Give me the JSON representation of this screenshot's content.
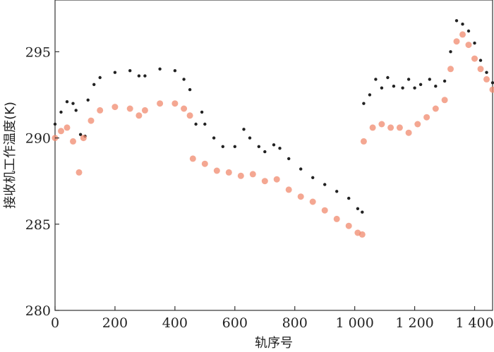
{
  "chart_data": {
    "type": "scatter",
    "xlabel": "轨序号",
    "ylabel": "接收机工作温度(K)",
    "xlim": [
      0,
      1460
    ],
    "ylim": [
      280,
      298
    ],
    "x_ticks": [
      0,
      200,
      400,
      600,
      800,
      1000,
      1200,
      1400
    ],
    "x_tick_labels": [
      "0",
      "200",
      "400",
      "600",
      "800",
      "1 000",
      "1 200",
      "1 400"
    ],
    "y_ticks": [
      280,
      285,
      290,
      295
    ],
    "y_tick_labels": [
      "280",
      "285",
      "290",
      "295"
    ],
    "grid": false,
    "series": [
      {
        "color": "#222222",
        "points": [
          [
            0,
            290.8
          ],
          [
            20,
            291.5
          ],
          [
            40,
            292.1
          ],
          [
            60,
            292.0
          ],
          [
            70,
            291.6
          ],
          [
            85,
            290.2
          ],
          [
            100,
            290.1
          ],
          [
            110,
            292.2
          ],
          [
            130,
            293.1
          ],
          [
            150,
            293.5
          ],
          [
            200,
            293.8
          ],
          [
            250,
            293.9
          ],
          [
            280,
            293.6
          ],
          [
            300,
            293.6
          ],
          [
            350,
            294.0
          ],
          [
            400,
            293.9
          ],
          [
            430,
            293.4
          ],
          [
            450,
            292.8
          ],
          [
            470,
            290.8
          ],
          [
            490,
            291.5
          ],
          [
            500,
            290.8
          ],
          [
            530,
            290.0
          ],
          [
            560,
            289.5
          ],
          [
            600,
            289.5
          ],
          [
            630,
            290.5
          ],
          [
            650,
            290.0
          ],
          [
            680,
            289.5
          ],
          [
            700,
            289.2
          ],
          [
            730,
            289.6
          ],
          [
            750,
            289.4
          ],
          [
            780,
            288.8
          ],
          [
            820,
            288.2
          ],
          [
            860,
            287.7
          ],
          [
            900,
            287.3
          ],
          [
            940,
            286.9
          ],
          [
            980,
            286.5
          ],
          [
            1010,
            285.9
          ],
          [
            1025,
            285.7
          ],
          [
            1030,
            292.0
          ],
          [
            1050,
            292.5
          ],
          [
            1070,
            293.4
          ],
          [
            1090,
            292.9
          ],
          [
            1110,
            293.5
          ],
          [
            1130,
            293.0
          ],
          [
            1160,
            292.9
          ],
          [
            1180,
            293.4
          ],
          [
            1200,
            292.9
          ],
          [
            1220,
            293.1
          ],
          [
            1250,
            293.4
          ],
          [
            1270,
            293.0
          ],
          [
            1300,
            293.3
          ],
          [
            1320,
            295.0
          ],
          [
            1340,
            296.8
          ],
          [
            1360,
            296.6
          ],
          [
            1380,
            296.2
          ],
          [
            1400,
            295.5
          ],
          [
            1420,
            294.5
          ],
          [
            1440,
            293.8
          ],
          [
            1460,
            293.2
          ]
        ]
      },
      {
        "color": "#f08a6e",
        "points": [
          [
            0,
            290.0
          ],
          [
            20,
            290.4
          ],
          [
            40,
            290.6
          ],
          [
            60,
            289.8
          ],
          [
            80,
            288.0
          ],
          [
            95,
            290.0
          ],
          [
            120,
            291.0
          ],
          [
            150,
            291.6
          ],
          [
            200,
            291.8
          ],
          [
            250,
            291.7
          ],
          [
            280,
            291.3
          ],
          [
            300,
            291.6
          ],
          [
            350,
            292.0
          ],
          [
            400,
            292.0
          ],
          [
            430,
            291.7
          ],
          [
            450,
            291.3
          ],
          [
            460,
            288.8
          ],
          [
            500,
            288.5
          ],
          [
            540,
            288.1
          ],
          [
            580,
            288.0
          ],
          [
            620,
            287.8
          ],
          [
            660,
            287.9
          ],
          [
            700,
            287.5
          ],
          [
            740,
            287.6
          ],
          [
            780,
            287.0
          ],
          [
            820,
            286.6
          ],
          [
            860,
            286.3
          ],
          [
            900,
            285.8
          ],
          [
            940,
            285.3
          ],
          [
            980,
            284.9
          ],
          [
            1010,
            284.5
          ],
          [
            1025,
            284.4
          ],
          [
            1030,
            289.8
          ],
          [
            1060,
            290.6
          ],
          [
            1090,
            290.8
          ],
          [
            1120,
            290.6
          ],
          [
            1150,
            290.6
          ],
          [
            1180,
            290.3
          ],
          [
            1210,
            290.8
          ],
          [
            1240,
            291.2
          ],
          [
            1270,
            291.7
          ],
          [
            1300,
            292.2
          ],
          [
            1320,
            294.0
          ],
          [
            1340,
            295.6
          ],
          [
            1360,
            296.0
          ],
          [
            1380,
            295.4
          ],
          [
            1400,
            294.6
          ],
          [
            1420,
            294.0
          ],
          [
            1440,
            293.4
          ],
          [
            1460,
            292.8
          ]
        ]
      }
    ]
  }
}
